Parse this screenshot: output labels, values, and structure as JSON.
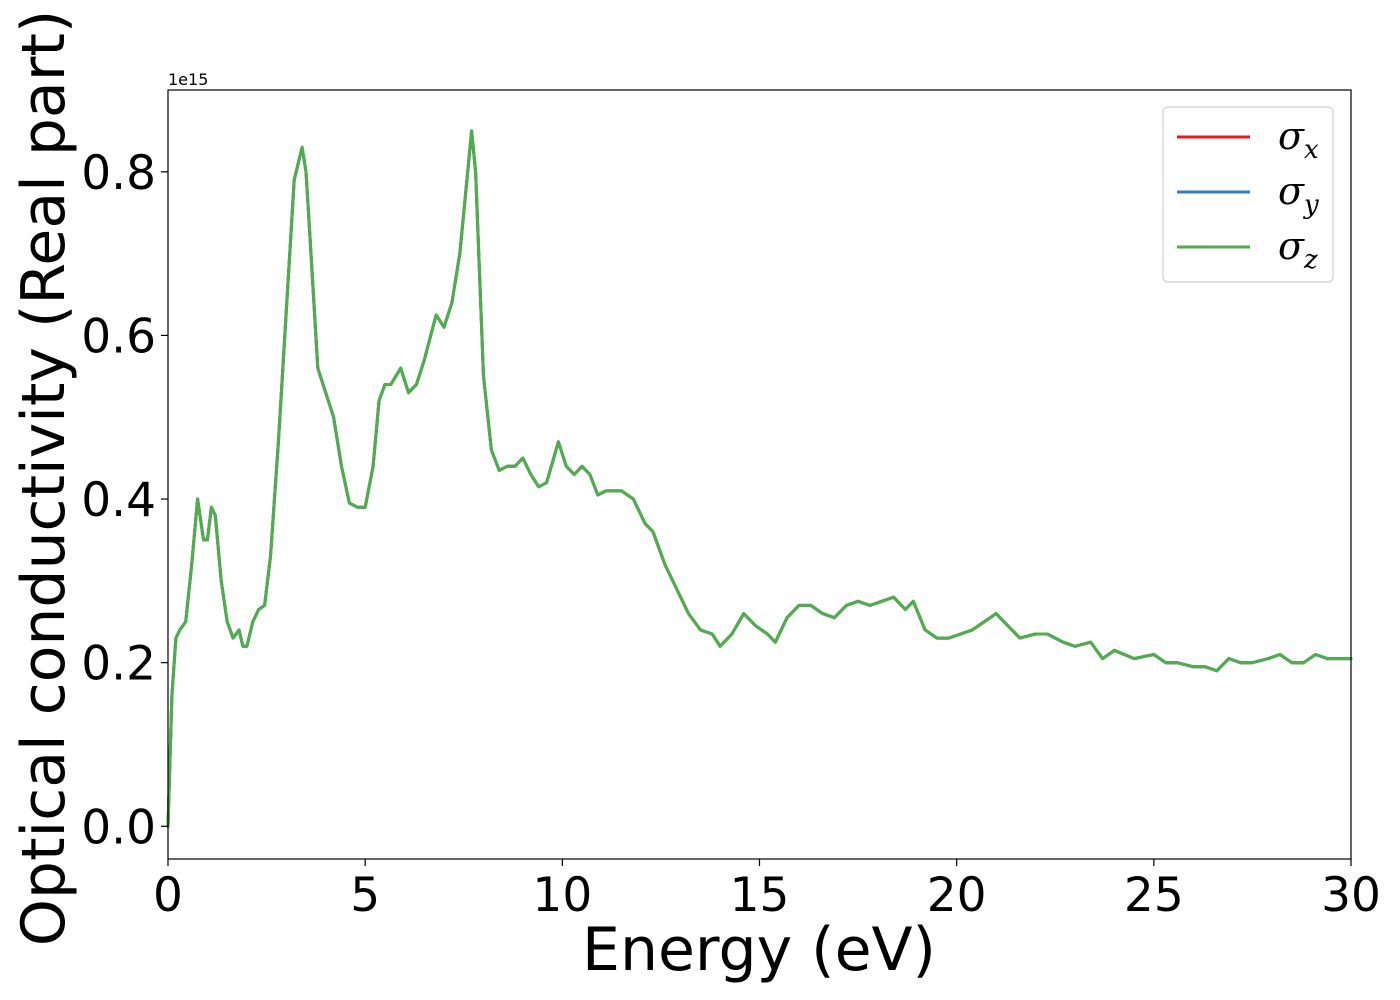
{
  "chart_data": {
    "type": "line",
    "title": "",
    "xlabel": "Energy (eV)",
    "ylabel": "Optical conductivity (Real part)",
    "y_offset_label": "1e15",
    "xlim": [
      0,
      30
    ],
    "ylim": [
      -0.04,
      0.9
    ],
    "grid": false,
    "legend_position": "top-right",
    "x_ticks": [
      0,
      5,
      10,
      15,
      20,
      25,
      30
    ],
    "x_tick_labels": [
      "0",
      "5",
      "10",
      "15",
      "20",
      "25",
      "30"
    ],
    "y_ticks": [
      0.0,
      0.2,
      0.4,
      0.6,
      0.8
    ],
    "y_tick_labels": [
      "0.0",
      "0.2",
      "0.4",
      "0.6",
      "0.8"
    ],
    "legend": [
      {
        "base": "σ",
        "sub": "x"
      },
      {
        "base": "σ",
        "sub": "y"
      },
      {
        "base": "σ",
        "sub": "z"
      }
    ],
    "x": [
      0,
      0.1,
      0.2,
      0.3,
      0.45,
      0.6,
      0.75,
      0.9,
      1.0,
      1.1,
      1.2,
      1.35,
      1.5,
      1.65,
      1.8,
      1.9,
      2.0,
      2.15,
      2.3,
      2.45,
      2.6,
      2.8,
      3.0,
      3.2,
      3.4,
      3.5,
      3.6,
      3.8,
      4.0,
      4.2,
      4.4,
      4.6,
      4.8,
      5.0,
      5.2,
      5.35,
      5.5,
      5.65,
      5.9,
      6.1,
      6.3,
      6.5,
      6.8,
      7.0,
      7.2,
      7.4,
      7.6,
      7.7,
      7.8,
      8.0,
      8.2,
      8.4,
      8.6,
      8.8,
      9.0,
      9.2,
      9.4,
      9.6,
      9.9,
      10.1,
      10.3,
      10.5,
      10.7,
      10.9,
      11.1,
      11.3,
      11.5,
      11.8,
      12.1,
      12.3,
      12.6,
      12.9,
      13.2,
      13.5,
      13.8,
      14.0,
      14.3,
      14.6,
      14.9,
      15.2,
      15.4,
      15.7,
      16.0,
      16.3,
      16.6,
      16.9,
      17.2,
      17.5,
      17.8,
      18.1,
      18.4,
      18.7,
      18.9,
      19.2,
      19.5,
      19.8,
      20.1,
      20.4,
      20.7,
      21.0,
      21.3,
      21.6,
      22.0,
      22.3,
      22.7,
      23.0,
      23.4,
      23.7,
      24.0,
      24.5,
      25.0,
      25.3,
      25.6,
      26.0,
      26.3,
      26.6,
      26.9,
      27.2,
      27.5,
      27.9,
      28.2,
      28.5,
      28.8,
      29.1,
      29.4,
      29.7,
      30.0
    ],
    "series": [
      {
        "name": "σx",
        "color": "#e41a1c",
        "values": [
          0.0,
          0.16,
          0.23,
          0.24,
          0.25,
          0.32,
          0.4,
          0.35,
          0.35,
          0.39,
          0.38,
          0.3,
          0.25,
          0.23,
          0.24,
          0.22,
          0.22,
          0.25,
          0.265,
          0.27,
          0.33,
          0.47,
          0.63,
          0.79,
          0.83,
          0.8,
          0.72,
          0.56,
          0.53,
          0.5,
          0.44,
          0.395,
          0.39,
          0.39,
          0.44,
          0.52,
          0.54,
          0.54,
          0.56,
          0.53,
          0.54,
          0.57,
          0.625,
          0.61,
          0.64,
          0.7,
          0.8,
          0.85,
          0.8,
          0.55,
          0.46,
          0.435,
          0.44,
          0.44,
          0.45,
          0.43,
          0.415,
          0.42,
          0.47,
          0.44,
          0.43,
          0.44,
          0.43,
          0.405,
          0.41,
          0.41,
          0.41,
          0.4,
          0.37,
          0.36,
          0.32,
          0.29,
          0.26,
          0.24,
          0.235,
          0.22,
          0.235,
          0.26,
          0.245,
          0.235,
          0.225,
          0.255,
          0.27,
          0.27,
          0.26,
          0.255,
          0.27,
          0.275,
          0.27,
          0.275,
          0.28,
          0.265,
          0.275,
          0.24,
          0.23,
          0.23,
          0.235,
          0.24,
          0.25,
          0.26,
          0.245,
          0.23,
          0.235,
          0.235,
          0.225,
          0.22,
          0.225,
          0.205,
          0.215,
          0.205,
          0.21,
          0.2,
          0.2,
          0.195,
          0.195,
          0.19,
          0.205,
          0.2,
          0.2,
          0.205,
          0.21,
          0.2,
          0.2,
          0.21,
          0.205,
          0.205,
          0.205
        ]
      },
      {
        "name": "σy",
        "color": "#377eb8",
        "values": [
          0.0,
          0.16,
          0.23,
          0.24,
          0.25,
          0.32,
          0.4,
          0.35,
          0.35,
          0.39,
          0.38,
          0.3,
          0.25,
          0.23,
          0.24,
          0.22,
          0.22,
          0.25,
          0.265,
          0.27,
          0.33,
          0.47,
          0.63,
          0.79,
          0.83,
          0.8,
          0.72,
          0.56,
          0.53,
          0.5,
          0.44,
          0.395,
          0.39,
          0.39,
          0.44,
          0.52,
          0.54,
          0.54,
          0.56,
          0.53,
          0.54,
          0.57,
          0.625,
          0.61,
          0.64,
          0.7,
          0.8,
          0.85,
          0.8,
          0.55,
          0.46,
          0.435,
          0.44,
          0.44,
          0.45,
          0.43,
          0.415,
          0.42,
          0.47,
          0.44,
          0.43,
          0.44,
          0.43,
          0.405,
          0.41,
          0.41,
          0.41,
          0.4,
          0.37,
          0.36,
          0.32,
          0.29,
          0.26,
          0.24,
          0.235,
          0.22,
          0.235,
          0.26,
          0.245,
          0.235,
          0.225,
          0.255,
          0.27,
          0.27,
          0.26,
          0.255,
          0.27,
          0.275,
          0.27,
          0.275,
          0.28,
          0.265,
          0.275,
          0.24,
          0.23,
          0.23,
          0.235,
          0.24,
          0.25,
          0.26,
          0.245,
          0.23,
          0.235,
          0.235,
          0.225,
          0.22,
          0.225,
          0.205,
          0.215,
          0.205,
          0.21,
          0.2,
          0.2,
          0.195,
          0.195,
          0.19,
          0.205,
          0.2,
          0.2,
          0.205,
          0.21,
          0.2,
          0.2,
          0.21,
          0.205,
          0.205,
          0.205
        ]
      },
      {
        "name": "σz",
        "color": "#4daf4a",
        "values": [
          0.0,
          0.16,
          0.23,
          0.24,
          0.25,
          0.32,
          0.4,
          0.35,
          0.35,
          0.39,
          0.38,
          0.3,
          0.25,
          0.23,
          0.24,
          0.22,
          0.22,
          0.25,
          0.265,
          0.27,
          0.33,
          0.47,
          0.63,
          0.79,
          0.83,
          0.8,
          0.72,
          0.56,
          0.53,
          0.5,
          0.44,
          0.395,
          0.39,
          0.39,
          0.44,
          0.52,
          0.54,
          0.54,
          0.56,
          0.53,
          0.54,
          0.57,
          0.625,
          0.61,
          0.64,
          0.7,
          0.8,
          0.85,
          0.8,
          0.55,
          0.46,
          0.435,
          0.44,
          0.44,
          0.45,
          0.43,
          0.415,
          0.42,
          0.47,
          0.44,
          0.43,
          0.44,
          0.43,
          0.405,
          0.41,
          0.41,
          0.41,
          0.4,
          0.37,
          0.36,
          0.32,
          0.29,
          0.26,
          0.24,
          0.235,
          0.22,
          0.235,
          0.26,
          0.245,
          0.235,
          0.225,
          0.255,
          0.27,
          0.27,
          0.26,
          0.255,
          0.27,
          0.275,
          0.27,
          0.275,
          0.28,
          0.265,
          0.275,
          0.24,
          0.23,
          0.23,
          0.235,
          0.24,
          0.25,
          0.26,
          0.245,
          0.23,
          0.235,
          0.235,
          0.225,
          0.22,
          0.225,
          0.205,
          0.215,
          0.205,
          0.21,
          0.2,
          0.2,
          0.195,
          0.195,
          0.19,
          0.205,
          0.2,
          0.2,
          0.205,
          0.21,
          0.2,
          0.2,
          0.21,
          0.205,
          0.205,
          0.205
        ]
      }
    ]
  }
}
